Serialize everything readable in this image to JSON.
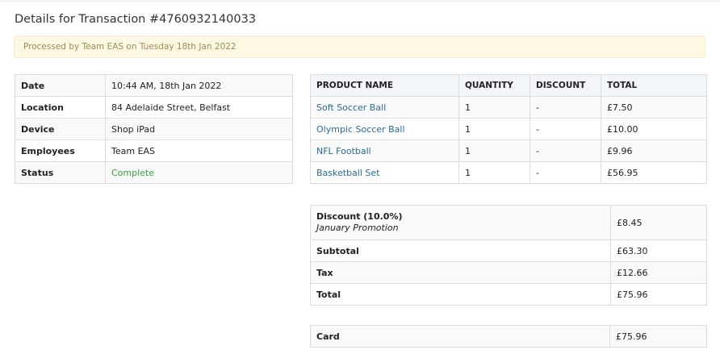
{
  "title": "Details for Transaction #4760932140033",
  "alert": "Processed by Team EAS on Tuesday 18th Jan 2022",
  "details": [
    {
      "label": "Date",
      "value": "10:44 AM, 18th Jan 2022"
    },
    {
      "label": "Location",
      "value": "84 Adelaide Street, Belfast"
    },
    {
      "label": "Device",
      "value": "Shop iPad"
    },
    {
      "label": "Employees",
      "value": "Team EAS"
    },
    {
      "label": "Status",
      "value": "Complete"
    }
  ],
  "products": {
    "headers": [
      "PRODUCT NAME",
      "QUANTITY",
      "DISCOUNT",
      "TOTAL"
    ],
    "rows": [
      {
        "name": "Soft Soccer Ball",
        "qty": "1",
        "discount": "-",
        "total": "£7.50"
      },
      {
        "name": "Olympic Soccer Ball",
        "qty": "1",
        "discount": "-",
        "total": "£10.00"
      },
      {
        "name": "NFL Football",
        "qty": "1",
        "discount": "-",
        "total": "£9.96"
      },
      {
        "name": "Basketball Set",
        "qty": "1",
        "discount": "-",
        "total": "£56.95"
      }
    ]
  },
  "summary": {
    "discount_label": "Discount (10.0%)",
    "discount_name": "January Promotion",
    "discount_value": "£8.45",
    "subtotal_label": "Subtotal",
    "subtotal": "£63.30",
    "tax_label": "Tax",
    "tax": "£12.66",
    "total_label": "Total",
    "total": "£75.96"
  },
  "payment": {
    "method": "Card",
    "amount": "£75.96"
  },
  "colors": {
    "status_complete": "#3a9a4a",
    "link": "#2a6a96",
    "alert_bg": "#fcf8e3"
  }
}
